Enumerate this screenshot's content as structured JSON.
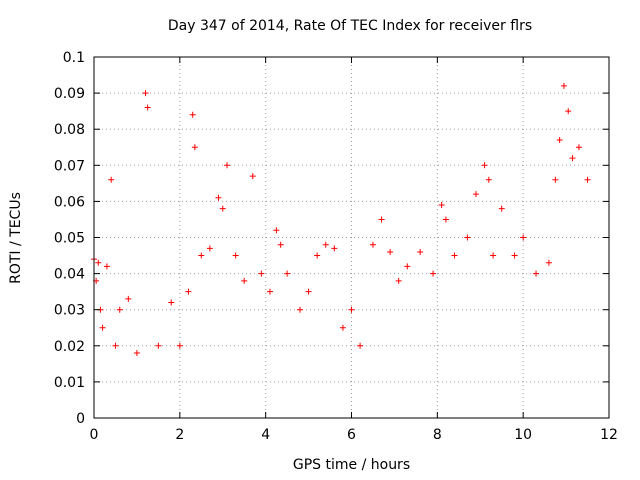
{
  "chart_data": {
    "type": "scatter",
    "title": "Day 347 of 2014, Rate Of TEC Index for receiver flrs",
    "xlabel": "GPS time / hours",
    "ylabel": "ROTI / TECUs",
    "xlim": [
      0,
      12
    ],
    "ylim": [
      0,
      0.1
    ],
    "xticks": [
      0,
      2,
      4,
      6,
      8,
      10,
      12
    ],
    "xtick_labels": [
      "0",
      "2",
      "4",
      "6",
      "8",
      "10",
      "12"
    ],
    "yticks": [
      0,
      0.01,
      0.02,
      0.03,
      0.04,
      0.05,
      0.06,
      0.07,
      0.08,
      0.09,
      0.1
    ],
    "ytick_labels": [
      "0",
      "0.01",
      "0.02",
      "0.03",
      "0.04",
      "0.05",
      "0.06",
      "0.07",
      "0.08",
      "0.09",
      "0.1"
    ],
    "grid": true,
    "marker": "+",
    "color": "#ff0000",
    "series": [
      {
        "name": "ROTI",
        "x": [
          0.0,
          0.05,
          0.1,
          0.15,
          0.2,
          0.3,
          0.4,
          0.5,
          0.6,
          0.8,
          1.0,
          1.2,
          1.25,
          1.5,
          1.8,
          2.0,
          2.2,
          2.3,
          2.35,
          2.5,
          2.7,
          2.9,
          3.0,
          3.1,
          3.3,
          3.5,
          3.7,
          3.9,
          4.1,
          4.25,
          4.35,
          4.5,
          4.8,
          5.0,
          5.2,
          5.4,
          5.6,
          5.8,
          6.0,
          6.2,
          6.5,
          6.7,
          6.9,
          7.1,
          7.3,
          7.6,
          7.9,
          8.1,
          8.2,
          8.4,
          8.7,
          8.9,
          9.1,
          9.2,
          9.3,
          9.5,
          9.8,
          10.0,
          10.3,
          10.6,
          10.75,
          10.85,
          10.95,
          11.05,
          11.15,
          11.3,
          11.5
        ],
        "y": [
          0.044,
          0.038,
          0.043,
          0.03,
          0.025,
          0.042,
          0.066,
          0.02,
          0.03,
          0.033,
          0.018,
          0.09,
          0.086,
          0.02,
          0.032,
          0.02,
          0.035,
          0.084,
          0.075,
          0.045,
          0.047,
          0.061,
          0.058,
          0.07,
          0.045,
          0.038,
          0.067,
          0.04,
          0.035,
          0.052,
          0.048,
          0.04,
          0.03,
          0.035,
          0.045,
          0.048,
          0.047,
          0.025,
          0.03,
          0.02,
          0.048,
          0.055,
          0.046,
          0.038,
          0.042,
          0.046,
          0.04,
          0.059,
          0.055,
          0.045,
          0.05,
          0.062,
          0.07,
          0.066,
          0.045,
          0.058,
          0.045,
          0.05,
          0.04,
          0.043,
          0.066,
          0.077,
          0.092,
          0.085,
          0.072,
          0.075,
          0.066
        ]
      }
    ]
  }
}
